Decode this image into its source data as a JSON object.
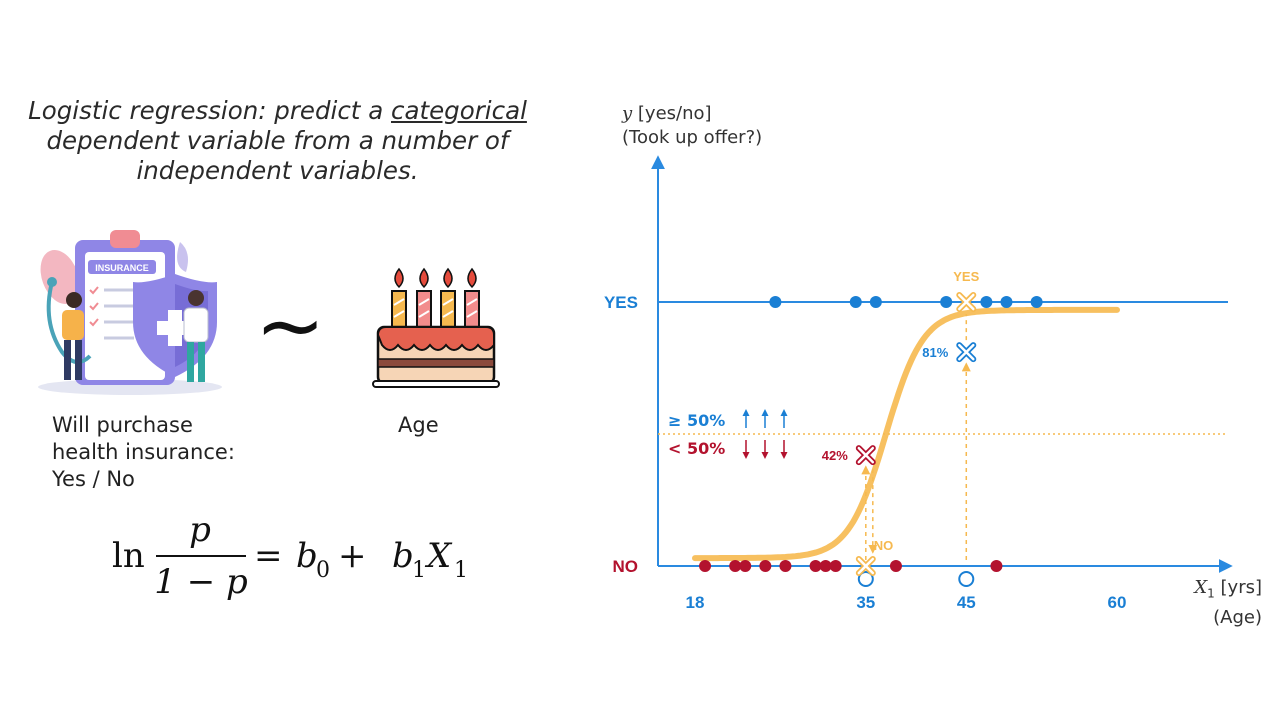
{
  "heading": {
    "line1_prefix": "Logistic regression: predict a ",
    "line1_underlined": "categorical",
    "line2": "dependent variable from a number of",
    "line3": "independent variables."
  },
  "illustrations": {
    "insurance_badge": "INSURANCE",
    "tilde": "~"
  },
  "captions": {
    "dependent_line1": "Will purchase",
    "dependent_line2": "health insurance:",
    "dependent_line3": "Yes / No",
    "independent": "Age"
  },
  "formula": {
    "ln": "ln",
    "numerator": "p",
    "one_minus": "1 − p",
    "equals": "=",
    "b0": "b",
    "b0_sub": "0",
    "plus": "+",
    "b1": "b",
    "b1_sub": "1",
    "x1": "X",
    "x1_sub": "1"
  },
  "colors": {
    "blue": "#1a7fd4",
    "red": "#b3122e",
    "orange": "#f6b94f",
    "axis": "#2a8ae0"
  },
  "chart_data": {
    "type": "scatter",
    "y_axis_label_var": "y",
    "y_axis_label_unit": " [yes/no]",
    "y_axis_label_line2": "(Took up offer?)",
    "x_axis_label_var": "X",
    "x_axis_label_sub": "1",
    "x_axis_label_unit": " [yrs]",
    "x_axis_label_line2": "(Age)",
    "y_categories": [
      "NO",
      "YES"
    ],
    "yes_label": "YES",
    "no_label": "NO",
    "x_ticks": [
      18,
      35,
      45,
      60
    ],
    "x_range": [
      18,
      60
    ],
    "threshold": 0.5,
    "threshold_above_label": "≥ 50%",
    "threshold_below_label": "< 50%",
    "yes_points_age": [
      26,
      34,
      36,
      43,
      45,
      47,
      49,
      52
    ],
    "no_points_age": [
      19,
      22,
      23,
      25,
      27,
      30,
      31,
      32,
      38,
      48
    ],
    "predictions": [
      {
        "age": 35,
        "probability": 0.42,
        "label": "42%",
        "outcome": "NO"
      },
      {
        "age": 45,
        "probability": 0.81,
        "label": "81%",
        "outcome": "YES"
      }
    ],
    "curve": {
      "midpoint_age": 37,
      "scale": 1.85
    }
  }
}
